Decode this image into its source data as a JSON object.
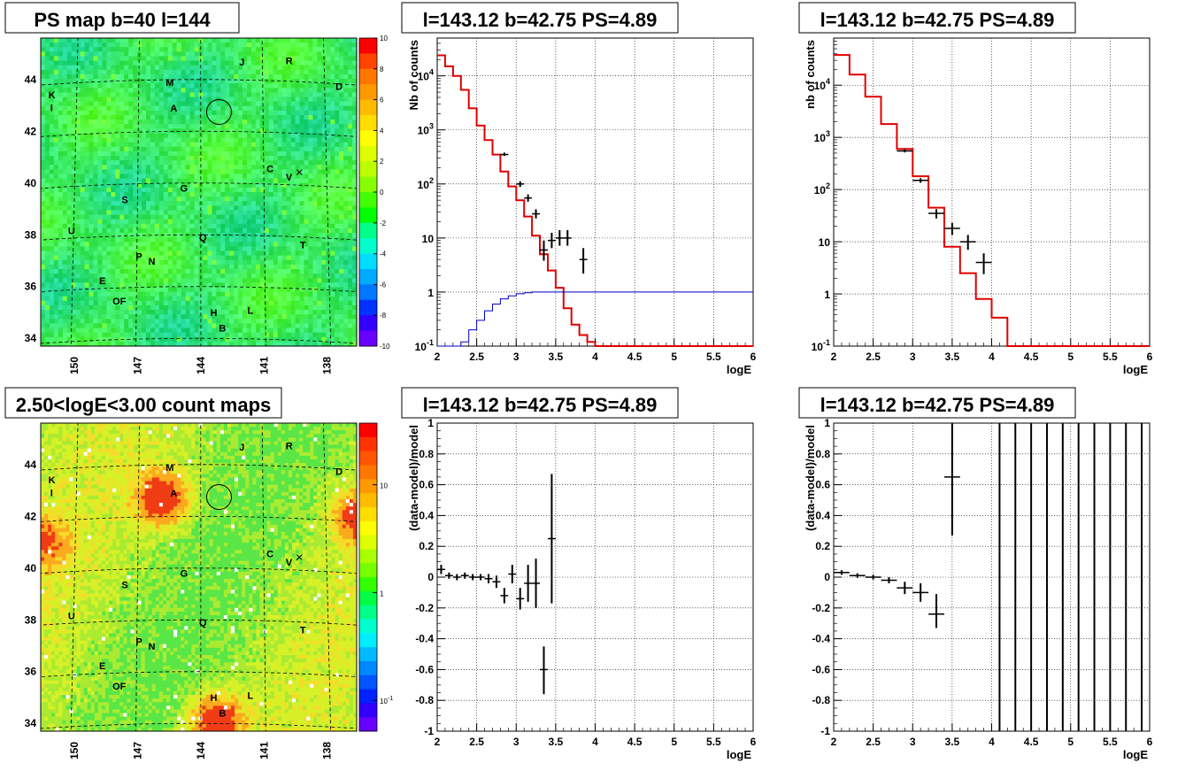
{
  "colors": {
    "model": "#e00000",
    "background_model": "#0000cc",
    "data": "#000000"
  },
  "chart_data": [
    {
      "type": "heatmap",
      "title": "PS map b=40 l=144",
      "x_ticks": [
        "150",
        "147",
        "144",
        "141",
        "138"
      ],
      "y_ticks": [
        "44",
        "42",
        "40",
        "38",
        "36",
        "34"
      ],
      "palette_ticks": [
        "10",
        "8",
        "6",
        "4",
        "2",
        "0",
        "-2",
        "-4",
        "-6",
        "-8",
        "-10"
      ],
      "zlim": [
        -10,
        10
      ],
      "source_labels": [
        "J",
        "R",
        "M",
        "D",
        "K",
        "I",
        "A",
        "C",
        "V",
        "G",
        "S",
        "U",
        "T",
        "Q",
        "P",
        "N",
        "E",
        "OF",
        "H",
        "L",
        "B"
      ],
      "marker_circle": {
        "l": 143.12,
        "b": 42.75
      }
    },
    {
      "type": "line",
      "title": "l=143.12 b=42.75 PS=4.89",
      "xlabel": "logE",
      "ylabel": "Nb of counts",
      "xlim": [
        2,
        6
      ],
      "ylim": [
        0.1,
        50000
      ],
      "yscale": "log",
      "grid": true,
      "x_ticks": [
        "2",
        "2.5",
        "3",
        "3.5",
        "4",
        "4.5",
        "5",
        "5.5",
        "6"
      ],
      "y_ticks": [
        "10^-1",
        "1",
        "10",
        "10^2",
        "10^3",
        "10^4"
      ],
      "series": [
        {
          "style": "step-red",
          "bin_width": 0.1,
          "edges_start": 2.0,
          "values": [
            24000,
            15000,
            10000,
            5500,
            2500,
            1200,
            650,
            350,
            170,
            90,
            50,
            25,
            11,
            5,
            2.5,
            1.2,
            0.5,
            0.25,
            0.16,
            0.12,
            0.1,
            0.1,
            0.1,
            0.1,
            0.1,
            0.1,
            0.1,
            0.1,
            0.1,
            0.1,
            0.1,
            0.1,
            0.1,
            0.1,
            0.1,
            0.1,
            0.1,
            0.1,
            0.1,
            0.1
          ]
        },
        {
          "style": "step-blue",
          "bin_width": 0.1,
          "edges_start": 2.0,
          "values": [
            0.1,
            0.1,
            0.1,
            0.12,
            0.2,
            0.3,
            0.45,
            0.6,
            0.75,
            0.85,
            0.93,
            0.97,
            1,
            1,
            1,
            1,
            1,
            1,
            1,
            1,
            1,
            1,
            1,
            1,
            1,
            1,
            1,
            1,
            1,
            1,
            1,
            1,
            1,
            1,
            1,
            1,
            1,
            1,
            1,
            1
          ]
        },
        {
          "style": "data-points",
          "points": [
            {
              "x": 2.85,
              "y": 350,
              "lo": 330,
              "hi": 380,
              "xerr": 0.05
            },
            {
              "x": 3.05,
              "y": 100,
              "lo": 88,
              "hi": 112,
              "xerr": 0.05
            },
            {
              "x": 3.15,
              "y": 55,
              "lo": 47,
              "hi": 64,
              "xerr": 0.05
            },
            {
              "x": 3.25,
              "y": 28,
              "lo": 23,
              "hi": 34,
              "xerr": 0.05
            },
            {
              "x": 3.35,
              "y": 6,
              "lo": 3.8,
              "hi": 9,
              "xerr": 0.05
            },
            {
              "x": 3.45,
              "y": 9,
              "lo": 6.5,
              "hi": 12.5,
              "xerr": 0.05
            },
            {
              "x": 3.55,
              "y": 10,
              "lo": 7.2,
              "hi": 14,
              "xerr": 0.05
            },
            {
              "x": 3.65,
              "y": 10,
              "lo": 7.2,
              "hi": 14,
              "xerr": 0.05
            },
            {
              "x": 3.85,
              "y": 4,
              "lo": 2.2,
              "hi": 6.5,
              "xerr": 0.05
            }
          ]
        }
      ]
    },
    {
      "type": "line",
      "title": "l=143.12 b=42.75 PS=4.89",
      "xlabel": "logE",
      "ylabel": "nb of counts",
      "xlim": [
        2,
        6
      ],
      "ylim": [
        0.1,
        80000
      ],
      "yscale": "log",
      "grid": true,
      "x_ticks": [
        "2",
        "2.5",
        "3",
        "3.5",
        "4",
        "4.5",
        "5",
        "5.5",
        "6"
      ],
      "y_ticks": [
        "10^-1",
        "1",
        "10",
        "10^2",
        "10^3",
        "10^4"
      ],
      "series": [
        {
          "style": "step-red",
          "bin_width": 0.2,
          "edges_start": 2.0,
          "values": [
            38000,
            16000,
            6000,
            1800,
            600,
            180,
            45,
            8,
            2.5,
            0.8,
            0.35,
            0.1,
            0.1,
            0.1,
            0.1,
            0.1,
            0.1,
            0.1,
            0.1,
            0.1
          ]
        },
        {
          "style": "data-points",
          "points": [
            {
              "x": 2.9,
              "y": 550,
              "lo": 515,
              "hi": 590,
              "xerr": 0.1
            },
            {
              "x": 3.1,
              "y": 150,
              "lo": 135,
              "hi": 165,
              "xerr": 0.1
            },
            {
              "x": 3.3,
              "y": 35,
              "lo": 28,
              "hi": 42,
              "xerr": 0.1
            },
            {
              "x": 3.5,
              "y": 18,
              "lo": 13.5,
              "hi": 23,
              "xerr": 0.1
            },
            {
              "x": 3.7,
              "y": 10,
              "lo": 7,
              "hi": 13.5,
              "xerr": 0.1
            },
            {
              "x": 3.9,
              "y": 4,
              "lo": 2.4,
              "hi": 6,
              "xerr": 0.1
            }
          ]
        }
      ]
    },
    {
      "type": "heatmap",
      "title": "2.50<logE<3.00 count maps",
      "x_ticks": [
        "150",
        "147",
        "144",
        "141",
        "138"
      ],
      "y_ticks": [
        "44",
        "42",
        "40",
        "38",
        "36",
        "34"
      ],
      "palette_ticks": [
        "10",
        "1",
        "10^-1"
      ],
      "zscale": "log",
      "source_labels": [
        "J",
        "R",
        "M",
        "D",
        "K",
        "I",
        "A",
        "C",
        "V",
        "G",
        "S",
        "U",
        "T",
        "Q",
        "P",
        "N",
        "E",
        "OF",
        "H",
        "L",
        "B"
      ],
      "marker_circle": {
        "l": 143.12,
        "b": 42.75
      }
    },
    {
      "type": "scatter",
      "title": "l=143.12 b=42.75 PS=4.89",
      "xlabel": "logE",
      "ylabel": "(data-model)/model",
      "xlim": [
        2,
        6
      ],
      "ylim": [
        -1,
        1
      ],
      "grid": true,
      "x_ticks": [
        "2",
        "2.5",
        "3",
        "3.5",
        "4",
        "4.5",
        "5",
        "5.5",
        "6"
      ],
      "y_ticks": [
        "-1",
        "-0.8",
        "-0.6",
        "-0.4",
        "-0.2",
        "0",
        "0.2",
        "0.4",
        "0.6",
        "0.8",
        "1"
      ],
      "series": [
        {
          "style": "data-points",
          "points": [
            {
              "x": 2.05,
              "y": 0.05,
              "lo": 0.02,
              "hi": 0.08,
              "xerr": 0.05
            },
            {
              "x": 2.15,
              "y": 0.01,
              "lo": -0.01,
              "hi": 0.03,
              "xerr": 0.05
            },
            {
              "x": 2.25,
              "y": 0.0,
              "lo": -0.02,
              "hi": 0.02,
              "xerr": 0.05
            },
            {
              "x": 2.35,
              "y": 0.01,
              "lo": -0.01,
              "hi": 0.03,
              "xerr": 0.05
            },
            {
              "x": 2.45,
              "y": 0.0,
              "lo": -0.02,
              "hi": 0.02,
              "xerr": 0.05
            },
            {
              "x": 2.55,
              "y": 0.0,
              "lo": -0.02,
              "hi": 0.02,
              "xerr": 0.05
            },
            {
              "x": 2.65,
              "y": -0.01,
              "lo": -0.04,
              "hi": 0.02,
              "xerr": 0.05
            },
            {
              "x": 2.75,
              "y": -0.03,
              "lo": -0.07,
              "hi": 0.01,
              "xerr": 0.05
            },
            {
              "x": 2.85,
              "y": -0.12,
              "lo": -0.17,
              "hi": -0.07,
              "xerr": 0.05
            },
            {
              "x": 2.95,
              "y": 0.02,
              "lo": -0.04,
              "hi": 0.08,
              "xerr": 0.05
            },
            {
              "x": 3.05,
              "y": -0.14,
              "lo": -0.21,
              "hi": -0.07,
              "xerr": 0.05
            },
            {
              "x": 3.15,
              "y": -0.04,
              "lo": -0.16,
              "hi": 0.08,
              "xerr": 0.05
            },
            {
              "x": 3.25,
              "y": -0.04,
              "lo": -0.2,
              "hi": 0.12,
              "xerr": 0.05
            },
            {
              "x": 3.35,
              "y": -0.6,
              "lo": -0.76,
              "hi": -0.45,
              "xerr": 0.05
            },
            {
              "x": 3.45,
              "y": 0.25,
              "lo": -0.17,
              "hi": 0.67,
              "xerr": 0.05
            }
          ]
        }
      ]
    },
    {
      "type": "scatter",
      "title": "l=143.12 b=42.75 PS=4.89",
      "xlabel": "logE",
      "ylabel": "(data-model)/model",
      "xlim": [
        2,
        6
      ],
      "ylim": [
        -1,
        1
      ],
      "grid": true,
      "x_ticks": [
        "2",
        "2.5",
        "3",
        "3.5",
        "4",
        "4.5",
        "5",
        "5.5",
        "6"
      ],
      "y_ticks": [
        "-1",
        "-0.8",
        "-0.6",
        "-0.4",
        "-0.2",
        "0",
        "0.2",
        "0.4",
        "0.6",
        "0.8",
        "1"
      ],
      "series": [
        {
          "style": "data-points",
          "points": [
            {
              "x": 2.1,
              "y": 0.03,
              "lo": 0.015,
              "hi": 0.045,
              "xerr": 0.1
            },
            {
              "x": 2.3,
              "y": 0.01,
              "lo": -0.005,
              "hi": 0.025,
              "xerr": 0.1
            },
            {
              "x": 2.5,
              "y": 0.0,
              "lo": -0.015,
              "hi": 0.015,
              "xerr": 0.1
            },
            {
              "x": 2.7,
              "y": -0.02,
              "lo": -0.04,
              "hi": 0.0,
              "xerr": 0.1
            },
            {
              "x": 2.9,
              "y": -0.07,
              "lo": -0.11,
              "hi": -0.03,
              "xerr": 0.1
            },
            {
              "x": 3.1,
              "y": -0.1,
              "lo": -0.16,
              "hi": -0.04,
              "xerr": 0.1
            },
            {
              "x": 3.3,
              "y": -0.24,
              "lo": -0.33,
              "hi": -0.11,
              "xerr": 0.1
            },
            {
              "x": 3.5,
              "y": 0.65,
              "lo": 0.27,
              "hi": 1.0,
              "xerr": 0.1
            },
            {
              "x": 4.1,
              "y": 0.0,
              "lo": -1,
              "hi": 1,
              "xerr": 0.0
            },
            {
              "x": 4.3,
              "y": 0.0,
              "lo": -1,
              "hi": 1,
              "xerr": 0.0
            },
            {
              "x": 4.5,
              "y": 0.0,
              "lo": -1,
              "hi": 1,
              "xerr": 0.0
            },
            {
              "x": 4.7,
              "y": 0.0,
              "lo": -1,
              "hi": 1,
              "xerr": 0.0
            },
            {
              "x": 4.9,
              "y": 0.0,
              "lo": -1,
              "hi": 1,
              "xerr": 0.0
            },
            {
              "x": 5.1,
              "y": 0.0,
              "lo": -1,
              "hi": 1,
              "xerr": 0.0
            },
            {
              "x": 5.3,
              "y": 0.0,
              "lo": -1,
              "hi": 1,
              "xerr": 0.0
            },
            {
              "x": 5.5,
              "y": 0.0,
              "lo": -1,
              "hi": 1,
              "xerr": 0.0
            },
            {
              "x": 5.7,
              "y": 0.0,
              "lo": -1,
              "hi": 1,
              "xerr": 0.0
            },
            {
              "x": 5.9,
              "y": 0.0,
              "lo": -1,
              "hi": 1,
              "xerr": 0.0
            }
          ]
        }
      ]
    }
  ]
}
